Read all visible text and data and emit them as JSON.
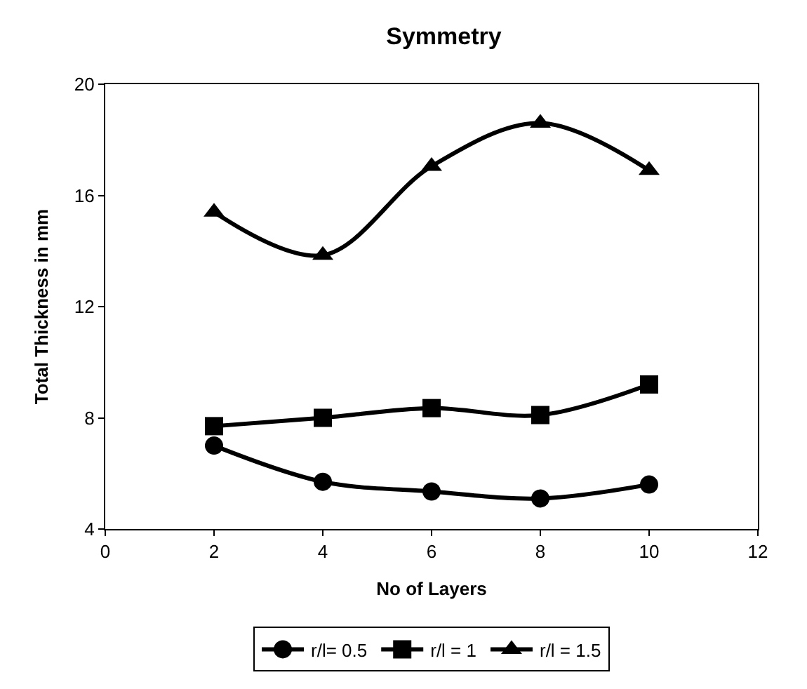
{
  "chart_data": {
    "type": "line",
    "title": "Symmetry",
    "xlabel": "No of Layers",
    "ylabel": "Total Thickness in mm",
    "x": [
      2,
      4,
      6,
      8,
      10
    ],
    "series": [
      {
        "name": "r/l= 0.5",
        "color": "#000000",
        "marker": "circle",
        "values": [
          7.0,
          5.7,
          5.35,
          5.1,
          5.6
        ]
      },
      {
        "name": "r/l = 1",
        "color": "#000000",
        "marker": "square",
        "values": [
          7.7,
          8.0,
          8.35,
          8.1,
          9.2
        ]
      },
      {
        "name": "r/l = 1.5",
        "color": "#000000",
        "marker": "triangle",
        "values": [
          15.4,
          13.85,
          17.05,
          18.6,
          16.9
        ]
      }
    ],
    "xlim": [
      0,
      12
    ],
    "xticks": [
      0,
      2,
      4,
      6,
      8,
      10,
      12
    ],
    "ylim": [
      4,
      20
    ],
    "yticks": [
      4,
      8,
      12,
      16,
      20
    ],
    "legend": "bottom"
  }
}
